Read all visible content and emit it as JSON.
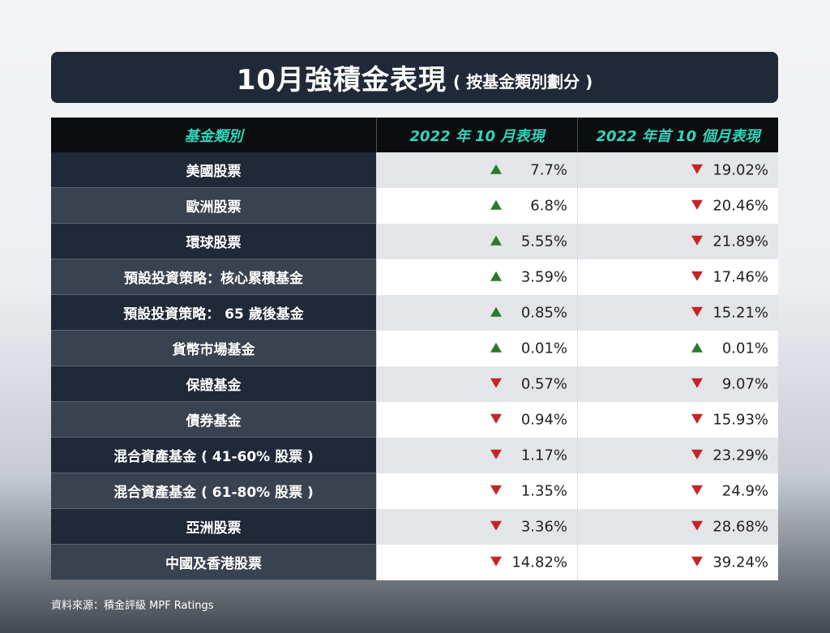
{
  "title": {
    "main": "10月強積金表現",
    "sub": "( 按基金類別劃分 )"
  },
  "colors": {
    "header_text": "#35d3bd",
    "up": "#2c7a2c",
    "down": "#c42525",
    "title_bg": "#1f2937"
  },
  "chart_data": {
    "type": "table",
    "columns": [
      "基金類別",
      "2022 年 10 月表現",
      "2022 年首 10 個月表現"
    ],
    "rows": [
      {
        "category": "美國股票",
        "oct": "7.7%",
        "oct_dir": "up",
        "ytd": "19.02%",
        "ytd_dir": "down"
      },
      {
        "category": "歐洲股票",
        "oct": "6.8%",
        "oct_dir": "up",
        "ytd": "20.46%",
        "ytd_dir": "down"
      },
      {
        "category": "環球股票",
        "oct": "5.55%",
        "oct_dir": "up",
        "ytd": "21.89%",
        "ytd_dir": "down"
      },
      {
        "category": "預設投資策略：核心累積基金",
        "oct": "3.59%",
        "oct_dir": "up",
        "ytd": "17.46%",
        "ytd_dir": "down"
      },
      {
        "category": "預設投資策略： 65 歲後基金",
        "oct": "0.85%",
        "oct_dir": "up",
        "ytd": "15.21%",
        "ytd_dir": "down"
      },
      {
        "category": "貨幣市場基金",
        "oct": "0.01%",
        "oct_dir": "up",
        "ytd": "0.01%",
        "ytd_dir": "up"
      },
      {
        "category": "保證基金",
        "oct": "0.57%",
        "oct_dir": "down",
        "ytd": "9.07%",
        "ytd_dir": "down"
      },
      {
        "category": "債券基金",
        "oct": "0.94%",
        "oct_dir": "down",
        "ytd": "15.93%",
        "ytd_dir": "down"
      },
      {
        "category": "混合資產基金 ( 41-60% 股票 )",
        "oct": "1.17%",
        "oct_dir": "down",
        "ytd": "23.29%",
        "ytd_dir": "down"
      },
      {
        "category": "混合資產基金 ( 61-80% 股票 )",
        "oct": "1.35%",
        "oct_dir": "down",
        "ytd": "24.9%",
        "ytd_dir": "down"
      },
      {
        "category": "亞洲股票",
        "oct": "3.36%",
        "oct_dir": "down",
        "ytd": "28.68%",
        "ytd_dir": "down"
      },
      {
        "category": "中國及香港股票",
        "oct": "14.82%",
        "oct_dir": "down",
        "ytd": "39.24%",
        "ytd_dir": "down"
      }
    ]
  },
  "source": "資料來源：積金評級 MPF Ratings"
}
